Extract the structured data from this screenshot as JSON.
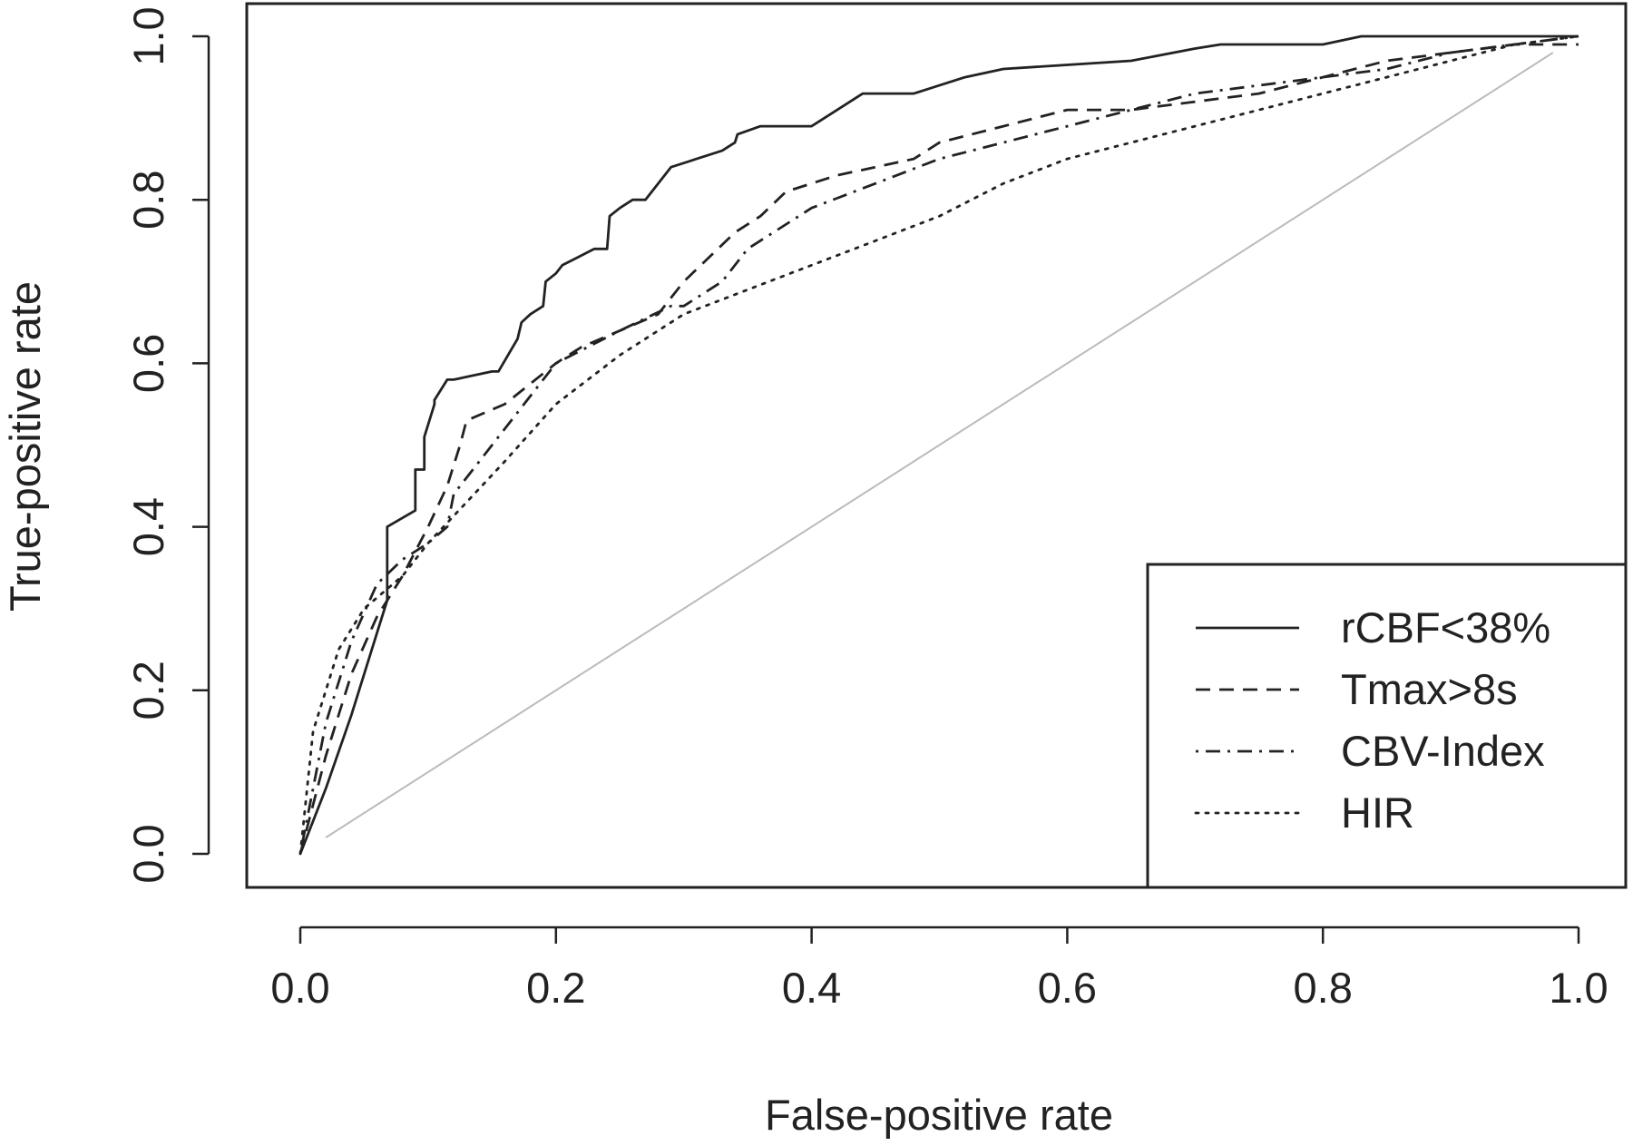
{
  "chart_data": {
    "type": "line",
    "xlabel": "False-positive rate",
    "ylabel": "True-positive rate",
    "xlim": [
      0,
      1
    ],
    "ylim": [
      0,
      1
    ],
    "x_ticks": [
      "0.0",
      "0.2",
      "0.4",
      "0.6",
      "0.8",
      "1.0"
    ],
    "y_ticks": [
      "0.0",
      "0.2",
      "0.4",
      "0.6",
      "0.8",
      "1.0"
    ],
    "grid": false,
    "legend_position": "bottom-right",
    "reference_line": {
      "x": [
        0.02,
        0.98
      ],
      "y": [
        0.02,
        0.98
      ],
      "color": "#bbbbbb"
    },
    "series": [
      {
        "name": "rCBF<38%",
        "style": "solid",
        "x": [
          0.0,
          0.02,
          0.04,
          0.06,
          0.068,
          0.068,
          0.09,
          0.09,
          0.097,
          0.097,
          0.105,
          0.105,
          0.115,
          0.12,
          0.15,
          0.155,
          0.17,
          0.173,
          0.18,
          0.19,
          0.192,
          0.2,
          0.205,
          0.23,
          0.24,
          0.242,
          0.25,
          0.26,
          0.27,
          0.28,
          0.29,
          0.3,
          0.31,
          0.33,
          0.34,
          0.342,
          0.36,
          0.4,
          0.44,
          0.48,
          0.5,
          0.52,
          0.55,
          0.6,
          0.65,
          0.7,
          0.72,
          0.8,
          0.83,
          0.9,
          1.0
        ],
        "y": [
          0.0,
          0.08,
          0.17,
          0.27,
          0.31,
          0.4,
          0.42,
          0.47,
          0.47,
          0.51,
          0.55,
          0.555,
          0.58,
          0.58,
          0.59,
          0.59,
          0.63,
          0.65,
          0.66,
          0.67,
          0.7,
          0.71,
          0.72,
          0.74,
          0.74,
          0.78,
          0.79,
          0.8,
          0.8,
          0.82,
          0.84,
          0.845,
          0.85,
          0.86,
          0.87,
          0.88,
          0.89,
          0.89,
          0.93,
          0.93,
          0.94,
          0.95,
          0.96,
          0.965,
          0.97,
          0.985,
          0.99,
          0.99,
          1.0,
          1.0,
          1.0
        ]
      },
      {
        "name": "Tmax>8s",
        "style": "dashed",
        "x": [
          0.0,
          0.02,
          0.04,
          0.06,
          0.08,
          0.1,
          0.115,
          0.125,
          0.13,
          0.16,
          0.2,
          0.22,
          0.25,
          0.28,
          0.3,
          0.32,
          0.34,
          0.36,
          0.38,
          0.4,
          0.42,
          0.45,
          0.48,
          0.5,
          0.55,
          0.6,
          0.65,
          0.7,
          0.75,
          0.8,
          0.85,
          0.9,
          0.95,
          1.0
        ],
        "y": [
          0.0,
          0.12,
          0.22,
          0.29,
          0.34,
          0.4,
          0.45,
          0.5,
          0.53,
          0.55,
          0.6,
          0.62,
          0.64,
          0.66,
          0.7,
          0.73,
          0.76,
          0.78,
          0.81,
          0.82,
          0.83,
          0.84,
          0.85,
          0.87,
          0.89,
          0.91,
          0.91,
          0.92,
          0.93,
          0.95,
          0.97,
          0.98,
          0.99,
          0.99
        ]
      },
      {
        "name": "CBV-Index",
        "style": "dashdot",
        "x": [
          0.0,
          0.02,
          0.04,
          0.06,
          0.08,
          0.1,
          0.115,
          0.12,
          0.15,
          0.2,
          0.25,
          0.29,
          0.3,
          0.33,
          0.35,
          0.4,
          0.45,
          0.5,
          0.55,
          0.6,
          0.65,
          0.7,
          0.75,
          0.8,
          0.85,
          0.9,
          0.95,
          1.0
        ],
        "y": [
          0.0,
          0.16,
          0.26,
          0.33,
          0.36,
          0.38,
          0.4,
          0.44,
          0.5,
          0.6,
          0.64,
          0.67,
          0.67,
          0.7,
          0.74,
          0.79,
          0.82,
          0.85,
          0.87,
          0.89,
          0.91,
          0.93,
          0.94,
          0.95,
          0.96,
          0.98,
          0.99,
          1.0
        ]
      },
      {
        "name": "HIR",
        "style": "dotted",
        "x": [
          0.0,
          0.01,
          0.03,
          0.05,
          0.08,
          0.1,
          0.13,
          0.16,
          0.2,
          0.25,
          0.3,
          0.35,
          0.4,
          0.45,
          0.5,
          0.55,
          0.6,
          0.65,
          0.7,
          0.75,
          0.8,
          0.85,
          0.9,
          0.95,
          1.0
        ],
        "y": [
          0.0,
          0.15,
          0.25,
          0.3,
          0.34,
          0.38,
          0.43,
          0.48,
          0.55,
          0.61,
          0.66,
          0.69,
          0.72,
          0.75,
          0.78,
          0.82,
          0.85,
          0.87,
          0.89,
          0.91,
          0.93,
          0.95,
          0.97,
          0.99,
          1.0
        ]
      }
    ]
  }
}
